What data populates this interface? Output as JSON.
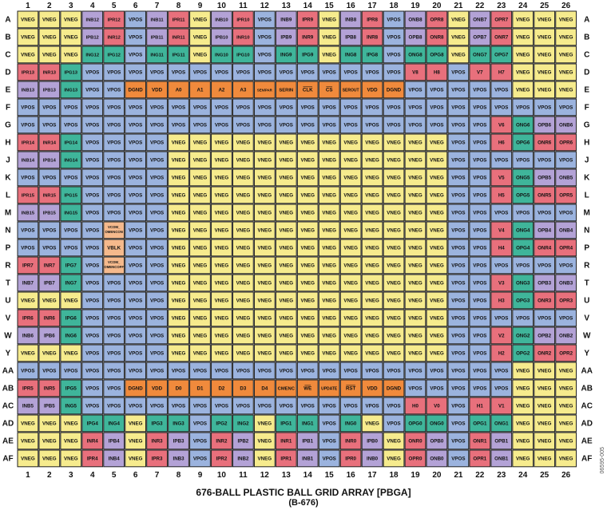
{
  "caption": {
    "title": "676-BALL PLASTIC BALL GRID ARRAY [PBGA]",
    "subtitle": "(B-676)"
  },
  "figure_id": "06595-005",
  "colors": {
    "VNEG": "#f6eb8d",
    "VPOS": "#9bb3de",
    "INB": "#b3a2d6",
    "IPR": "#e8707c",
    "IPG": "#3fb59a",
    "ONB": "#b3a2d6",
    "OPR": "#e8707c",
    "ONR": "#e8707c",
    "OPB": "#b3a2d6",
    "ONG": "#3fb59a",
    "OPG": "#3fb59a",
    "V": "#e8707c",
    "H": "#e8707c",
    "DIGITAL": "#f08a3c",
    "VCOM": "#f5b98c",
    "grid_border": "#222222"
  },
  "columns": [
    "1",
    "2",
    "3",
    "4",
    "5",
    "6",
    "7",
    "8",
    "9",
    "10",
    "11",
    "12",
    "13",
    "14",
    "15",
    "16",
    "17",
    "18",
    "19",
    "20",
    "21",
    "22",
    "23",
    "24",
    "25",
    "26"
  ],
  "rows": [
    {
      "label": "A",
      "cells": [
        "VNEG",
        "VNEG",
        "VNEG",
        "INB12",
        "IPR12",
        "VPOS",
        "INB11",
        "IPR11",
        "VNEG",
        "INB10",
        "IPR10",
        "VPOS",
        "INB9",
        "IPR9",
        "VNEG",
        "INB8",
        "IPR8",
        "VPOS",
        "ONB8",
        "OPR8",
        "VNEG",
        "ONB7",
        "OPR7",
        "VNEG",
        "VNEG",
        "VNEG"
      ]
    },
    {
      "label": "B",
      "cells": [
        "VNEG",
        "VNEG",
        "VNEG",
        "IPB12",
        "INR12",
        "VPOS",
        "IPB11",
        "INR11",
        "VNEG",
        "IPB10",
        "INR10",
        "VPOS",
        "IPB9",
        "INR9",
        "VNEG",
        "IPB8",
        "INR8",
        "VPOS",
        "OPB8",
        "ONR8",
        "VNEG",
        "OPB7",
        "ONR7",
        "VNEG",
        "VNEG",
        "VNEG"
      ]
    },
    {
      "label": "C",
      "cells": [
        "VNEG",
        "VNEG",
        "VNEG",
        "ING12",
        "IPG12",
        "VPOS",
        "ING11",
        "IPG11",
        "VNEG",
        "ING10",
        "IPG10",
        "VPOS",
        "ING9",
        "IPG9",
        "VNEG",
        "ING8",
        "IPG8",
        "VPOS",
        "ONG8",
        "OPG8",
        "VNEG",
        "ONG7",
        "OPG7",
        "VNEG",
        "VNEG",
        "VNEG"
      ]
    },
    {
      "label": "D",
      "cells": [
        "IPR13",
        "INR13",
        "IPG13",
        "VPOS",
        "VPOS",
        "VPOS",
        "VPOS",
        "VPOS",
        "VPOS",
        "VPOS",
        "VPOS",
        "VPOS",
        "VPOS",
        "VPOS",
        "VPOS",
        "VPOS",
        "VPOS",
        "VPOS",
        "V8",
        "H8",
        "VPOS",
        "V7",
        "H7",
        "VNEG",
        "VNEG",
        "VNEG"
      ]
    },
    {
      "label": "E",
      "cells": [
        "INB13",
        "IPB13",
        "ING13",
        "VPOS",
        "VPOS",
        "DGND",
        "VDD",
        "A0",
        "A1",
        "A2",
        "A3",
        "SEN/PAR",
        "SERIN",
        "CLK",
        "CS",
        "SEROUT",
        "VDD",
        "DGND",
        "VPOS",
        "VPOS",
        "VPOS",
        "VPOS",
        "VPOS",
        "VNEG",
        "VNEG",
        "VNEG"
      ]
    },
    {
      "label": "F",
      "cells": [
        "VPOS",
        "VPOS",
        "VPOS",
        "VPOS",
        "VPOS",
        "VPOS",
        "VPOS",
        "VPOS",
        "VPOS",
        "VPOS",
        "VPOS",
        "VPOS",
        "VPOS",
        "VPOS",
        "VPOS",
        "VPOS",
        "VPOS",
        "VPOS",
        "VPOS",
        "VPOS",
        "VPOS",
        "VPOS",
        "VPOS",
        "VPOS",
        "VPOS",
        "VPOS"
      ]
    },
    {
      "label": "G",
      "cells": [
        "VPOS",
        "VPOS",
        "VPOS",
        "VPOS",
        "VPOS",
        "VPOS",
        "VPOS",
        "VPOS",
        "VPOS",
        "VPOS",
        "VPOS",
        "VPOS",
        "VPOS",
        "VPOS",
        "VPOS",
        "VPOS",
        "VPOS",
        "VPOS",
        "VPOS",
        "VPOS",
        "VPOS",
        "VPOS",
        "V6",
        "ONG6",
        "OPB6",
        "ONB6"
      ]
    },
    {
      "label": "H",
      "cells": [
        "IPR14",
        "INR14",
        "IPG14",
        "VPOS",
        "VPOS",
        "VPOS",
        "VPOS",
        "VNEG",
        "VNEG",
        "VNEG",
        "VNEG",
        "VNEG",
        "VNEG",
        "VNEG",
        "VNEG",
        "VNEG",
        "VNEG",
        "VNEG",
        "VNEG",
        "VNEG",
        "VPOS",
        "VPOS",
        "H6",
        "OPG6",
        "ONR6",
        "OPR6"
      ]
    },
    {
      "label": "J",
      "cells": [
        "INB14",
        "IPB14",
        "ING14",
        "VPOS",
        "VPOS",
        "VPOS",
        "VPOS",
        "VNEG",
        "VNEG",
        "VNEG",
        "VNEG",
        "VNEG",
        "VNEG",
        "VNEG",
        "VNEG",
        "VNEG",
        "VNEG",
        "VNEG",
        "VNEG",
        "VNEG",
        "VPOS",
        "VPOS",
        "VPOS",
        "VPOS",
        "VPOS",
        "VPOS"
      ]
    },
    {
      "label": "K",
      "cells": [
        "VPOS",
        "VPOS",
        "VPOS",
        "VPOS",
        "VPOS",
        "VPOS",
        "VPOS",
        "VNEG",
        "VNEG",
        "VNEG",
        "VNEG",
        "VNEG",
        "VNEG",
        "VNEG",
        "VNEG",
        "VNEG",
        "VNEG",
        "VNEG",
        "VNEG",
        "VNEG",
        "VPOS",
        "VPOS",
        "V5",
        "ONG5",
        "OPB5",
        "ONB5"
      ]
    },
    {
      "label": "L",
      "cells": [
        "IPR15",
        "INR15",
        "IPG15",
        "VPOS",
        "VPOS",
        "VPOS",
        "VPOS",
        "VNEG",
        "VNEG",
        "VNEG",
        "VNEG",
        "VNEG",
        "VNEG",
        "VNEG",
        "VNEG",
        "VNEG",
        "VNEG",
        "VNEG",
        "VNEG",
        "VNEG",
        "VPOS",
        "VPOS",
        "H5",
        "OPG5",
        "ONR5",
        "OPR5"
      ]
    },
    {
      "label": "M",
      "cells": [
        "INB15",
        "IPB15",
        "ING15",
        "VPOS",
        "VPOS",
        "VPOS",
        "VPOS",
        "VNEG",
        "VNEG",
        "VNEG",
        "VNEG",
        "VNEG",
        "VNEG",
        "VNEG",
        "VNEG",
        "VNEG",
        "VNEG",
        "VNEG",
        "VNEG",
        "VNEG",
        "VPOS",
        "VPOS",
        "VPOS",
        "VPOS",
        "VPOS",
        "VPOS"
      ]
    },
    {
      "label": "N",
      "cells": [
        "VPOS",
        "VPOS",
        "VPOS",
        "VPOS",
        "VCOM_OMENCON",
        "VPOS",
        "VPOS",
        "VNEG",
        "VNEG",
        "VNEG",
        "VNEG",
        "VNEG",
        "VNEG",
        "VNEG",
        "VNEG",
        "VNEG",
        "VNEG",
        "VNEG",
        "VNEG",
        "VNEG",
        "VPOS",
        "VPOS",
        "V4",
        "ONG4",
        "OPB4",
        "ONB4"
      ]
    },
    {
      "label": "P",
      "cells": [
        "VPOS",
        "VPOS",
        "VPOS",
        "VPOS",
        "VBLK",
        "VPOS",
        "VPOS",
        "VNEG",
        "VNEG",
        "VNEG",
        "VNEG",
        "VNEG",
        "VNEG",
        "VNEG",
        "VNEG",
        "VNEG",
        "VNEG",
        "VNEG",
        "VNEG",
        "VNEG",
        "VPOS",
        "VPOS",
        "H4",
        "OPG4",
        "ONR4",
        "OPR4"
      ]
    },
    {
      "label": "R",
      "cells": [
        "IPR7",
        "INR7",
        "IPG7",
        "VPOS",
        "VCOM_OMENCOFF",
        "VPOS",
        "VPOS",
        "VNEG",
        "VNEG",
        "VNEG",
        "VNEG",
        "VNEG",
        "VNEG",
        "VNEG",
        "VNEG",
        "VNEG",
        "VNEG",
        "VNEG",
        "VNEG",
        "VNEG",
        "VPOS",
        "VPOS",
        "VPOS",
        "VPOS",
        "VPOS",
        "VPOS"
      ]
    },
    {
      "label": "T",
      "cells": [
        "INB7",
        "IPB7",
        "ING7",
        "VPOS",
        "VPOS",
        "VPOS",
        "VPOS",
        "VNEG",
        "VNEG",
        "VNEG",
        "VNEG",
        "VNEG",
        "VNEG",
        "VNEG",
        "VNEG",
        "VNEG",
        "VNEG",
        "VNEG",
        "VNEG",
        "VNEG",
        "VPOS",
        "VPOS",
        "V3",
        "ONG3",
        "OPB3",
        "ONB3"
      ]
    },
    {
      "label": "U",
      "cells": [
        "VNEG",
        "VNEG",
        "VNEG",
        "VPOS",
        "VPOS",
        "VPOS",
        "VPOS",
        "VNEG",
        "VNEG",
        "VNEG",
        "VNEG",
        "VNEG",
        "VNEG",
        "VNEG",
        "VNEG",
        "VNEG",
        "VNEG",
        "VNEG",
        "VNEG",
        "VNEG",
        "VPOS",
        "VPOS",
        "H3",
        "OPG3",
        "ONR3",
        "OPR3"
      ]
    },
    {
      "label": "V",
      "cells": [
        "IPR6",
        "INR6",
        "IPG6",
        "VPOS",
        "VPOS",
        "VPOS",
        "VPOS",
        "VNEG",
        "VNEG",
        "VNEG",
        "VNEG",
        "VNEG",
        "VNEG",
        "VNEG",
        "VNEG",
        "VNEG",
        "VNEG",
        "VNEG",
        "VNEG",
        "VNEG",
        "VPOS",
        "VPOS",
        "VPOS",
        "VPOS",
        "VPOS",
        "VPOS"
      ]
    },
    {
      "label": "W",
      "cells": [
        "INB6",
        "IPB6",
        "ING6",
        "VPOS",
        "VPOS",
        "VPOS",
        "VPOS",
        "VNEG",
        "VNEG",
        "VNEG",
        "VNEG",
        "VNEG",
        "VNEG",
        "VNEG",
        "VNEG",
        "VNEG",
        "VNEG",
        "VNEG",
        "VNEG",
        "VNEG",
        "VPOS",
        "VPOS",
        "V2",
        "ONG2",
        "OPB2",
        "ONB2"
      ]
    },
    {
      "label": "Y",
      "cells": [
        "VNEG",
        "VNEG",
        "VNEG",
        "VPOS",
        "VPOS",
        "VPOS",
        "VPOS",
        "VNEG",
        "VNEG",
        "VNEG",
        "VNEG",
        "VNEG",
        "VNEG",
        "VNEG",
        "VNEG",
        "VNEG",
        "VNEG",
        "VNEG",
        "VNEG",
        "VNEG",
        "VPOS",
        "VPOS",
        "H2",
        "OPG2",
        "ONR2",
        "OPR2"
      ]
    },
    {
      "label": "AA",
      "cells": [
        "VPOS",
        "VPOS",
        "VPOS",
        "VPOS",
        "VPOS",
        "VPOS",
        "VPOS",
        "VPOS",
        "VPOS",
        "VPOS",
        "VPOS",
        "VPOS",
        "VPOS",
        "VPOS",
        "VPOS",
        "VPOS",
        "VPOS",
        "VPOS",
        "VPOS",
        "VPOS",
        "VPOS",
        "VPOS",
        "VPOS",
        "VNEG",
        "VNEG",
        "VNEG"
      ]
    },
    {
      "label": "AB",
      "cells": [
        "IPR5",
        "INR5",
        "IPG5",
        "VPOS",
        "VPOS",
        "DGND",
        "VDD",
        "D0",
        "D1",
        "D2",
        "D3",
        "D4",
        "CMENC",
        "WE",
        "UPDATE",
        "RST",
        "VDD",
        "DGND",
        "VPOS",
        "VPOS",
        "VPOS",
        "VPOS",
        "VPOS",
        "VNEG",
        "VNEG",
        "VNEG"
      ]
    },
    {
      "label": "AC",
      "cells": [
        "INB5",
        "IPB5",
        "ING5",
        "VPOS",
        "VPOS",
        "VPOS",
        "VPOS",
        "VPOS",
        "VPOS",
        "VPOS",
        "VPOS",
        "VPOS",
        "VPOS",
        "VPOS",
        "VPOS",
        "VPOS",
        "VPOS",
        "VPOS",
        "H0",
        "V0",
        "VPOS",
        "H1",
        "V1",
        "VNEG",
        "VNEG",
        "VNEG"
      ]
    },
    {
      "label": "AD",
      "cells": [
        "VNEG",
        "VNEG",
        "VNEG",
        "IPG4",
        "ING4",
        "VNEG",
        "IPG3",
        "ING3",
        "VPOS",
        "IPG2",
        "ING2",
        "VNEG",
        "IPG1",
        "ING1",
        "VPOS",
        "ING0",
        "VNEG",
        "VPOS",
        "OPG0",
        "ONG0",
        "VPOS",
        "OPG1",
        "ONG1",
        "VNEG",
        "VNEG",
        "VNEG"
      ]
    },
    {
      "label": "AE",
      "cells": [
        "VNEG",
        "VNEG",
        "VNEG",
        "INR4",
        "IPB4",
        "VNEG",
        "INR3",
        "IPB3",
        "VPOS",
        "INR2",
        "IPB2",
        "VNEG",
        "INR1",
        "IPB1",
        "VPOS",
        "INR0",
        "IPB0",
        "VNEG",
        "ONR0",
        "OPB0",
        "VPOS",
        "ONR1",
        "OPB1",
        "VNEG",
        "VNEG",
        "VNEG"
      ]
    },
    {
      "label": "AF",
      "cells": [
        "VNEG",
        "VNEG",
        "VNEG",
        "IPR4",
        "INB4",
        "VNEG",
        "IPR3",
        "INB3",
        "VPOS",
        "IPR2",
        "INB2",
        "VNEG",
        "IPR1",
        "INB1",
        "VPOS",
        "IPR0",
        "INB0",
        "VNEG",
        "OPR0",
        "ONB0",
        "VPOS",
        "OPR1",
        "ONB1",
        "VNEG",
        "VNEG",
        "VNEG"
      ]
    }
  ]
}
